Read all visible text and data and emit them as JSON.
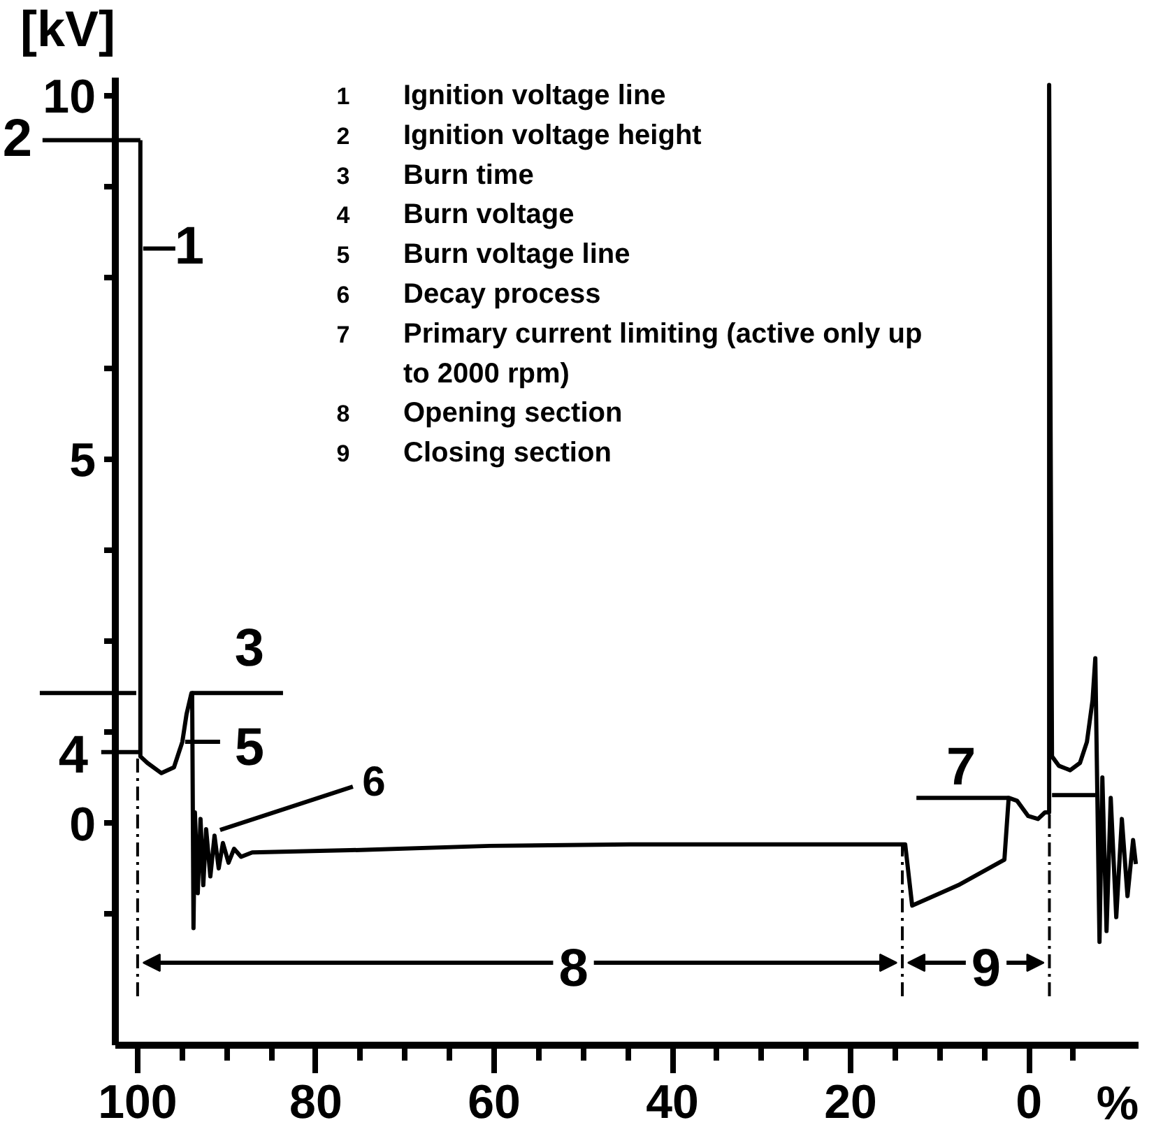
{
  "chart_data": {
    "type": "line",
    "xlabel": "%",
    "ylabel": "[kV]",
    "x": [
      99.69,
      99.69,
      98.9,
      97.33,
      95.92,
      94.98,
      94.51,
      93.96,
      93.88,
      93.73,
      93.57,
      93.25,
      92.94,
      92.63,
      92.31,
      91.84,
      91.37,
      90.9,
      90.43,
      89.8,
      89.18,
      88.39,
      87.14,
      76.16,
      60.47,
      44.78,
      29.1,
      14.2,
      13.88,
      13.1,
      7.92,
      2.75,
      2.27,
      1.33,
      0.08,
      -1.02,
      -1.8,
      -2.27,
      -2.27,
      -2.59,
      -3.37,
      -4.63,
      -5.73,
      -6.51,
      -7.14,
      -7.45,
      -7.92,
      -8.24,
      -8.71,
      -9.18,
      -9.8,
      -10.43,
      -11.06,
      -11.69,
      -12.0
    ],
    "series": [
      {
        "color": "#000000",
        "values": [
          9.39,
          0.92,
          0.83,
          0.69,
          0.77,
          1.12,
          1.5,
          1.79,
          1.79,
          -1.44,
          0.15,
          -0.96,
          0.06,
          -0.85,
          -0.08,
          -0.73,
          -0.17,
          -0.62,
          -0.27,
          -0.54,
          -0.35,
          -0.46,
          -0.4,
          -0.37,
          -0.31,
          -0.29,
          -0.29,
          -0.29,
          -0.29,
          -1.13,
          -0.85,
          -0.5,
          0.35,
          0.31,
          0.1,
          0.06,
          0.15,
          0.15,
          10.15,
          0.92,
          0.79,
          0.73,
          0.83,
          1.12,
          1.69,
          2.27,
          -1.63,
          0.63,
          -1.48,
          0.35,
          -1.29,
          0.06,
          -1.0,
          -0.23,
          -0.56
        ]
      }
    ],
    "xlim": [
      102.5,
      -12.3
    ],
    "ylim": [
      -3.05,
      10.25
    ],
    "xticks": [
      {
        "value": -5,
        "label": null
      },
      0,
      {
        "value": 5,
        "label": null
      },
      {
        "value": 10,
        "label": null
      },
      {
        "value": 15,
        "label": null
      },
      20,
      {
        "value": 25,
        "label": null
      },
      {
        "value": 30,
        "label": null
      },
      {
        "value": 35,
        "label": null
      },
      40,
      {
        "value": 45,
        "label": null
      },
      {
        "value": 50,
        "label": null
      },
      {
        "value": 55,
        "label": null
      },
      60,
      {
        "value": 65,
        "label": null
      },
      {
        "value": 70,
        "label": null
      },
      {
        "value": 75,
        "label": null
      },
      80,
      {
        "value": 85,
        "label": null
      },
      {
        "value": 90,
        "label": null
      },
      {
        "value": 95,
        "label": null
      },
      100
    ],
    "yticks": [
      {
        "value": -1.25,
        "label": null
      },
      0,
      {
        "value": 1.25,
        "label": null
      },
      {
        "value": 2.5,
        "label": null
      },
      {
        "value": 3.75,
        "label": null
      },
      5,
      {
        "value": 6.25,
        "label": null
      },
      {
        "value": 7.5,
        "label": null
      },
      {
        "value": 8.75,
        "label": null
      },
      10
    ],
    "grid": false,
    "annotations": [
      "1 Ignition voltage line",
      "2 Ignition voltage height",
      "3 Burn time",
      "4 Burn voltage",
      "5 Burn voltage line",
      "6 Decay process",
      "7 Primary current limiting (active only up to 2000 rpm)",
      "8 Opening section",
      "9 Closing section",
      {
        "text": "1",
        "x": 99.69,
        "y": 7.9
      },
      {
        "text": "2",
        "x": 99.69,
        "y": 9.39
      },
      {
        "text": "3",
        "x": 93.88,
        "y": 1.79
      },
      {
        "text": "4",
        "x": 99.69,
        "y": 0.98
      },
      {
        "text": "5",
        "x": 94.98,
        "y": 1.12
      },
      {
        "text": "6",
        "x": 91.06,
        "y": -0.13
      },
      {
        "text": "7",
        "x": 2.27,
        "y": 0.35
      },
      "8",
      "9"
    ],
    "ref_lines": [
      {
        "axis": "x",
        "value": 100,
        "line_style": "dashed"
      },
      {
        "axis": "x",
        "value": 14.2,
        "line_style": "dashed"
      },
      {
        "axis": "x",
        "value": -2.3,
        "line_style": "dashed"
      }
    ]
  }
}
